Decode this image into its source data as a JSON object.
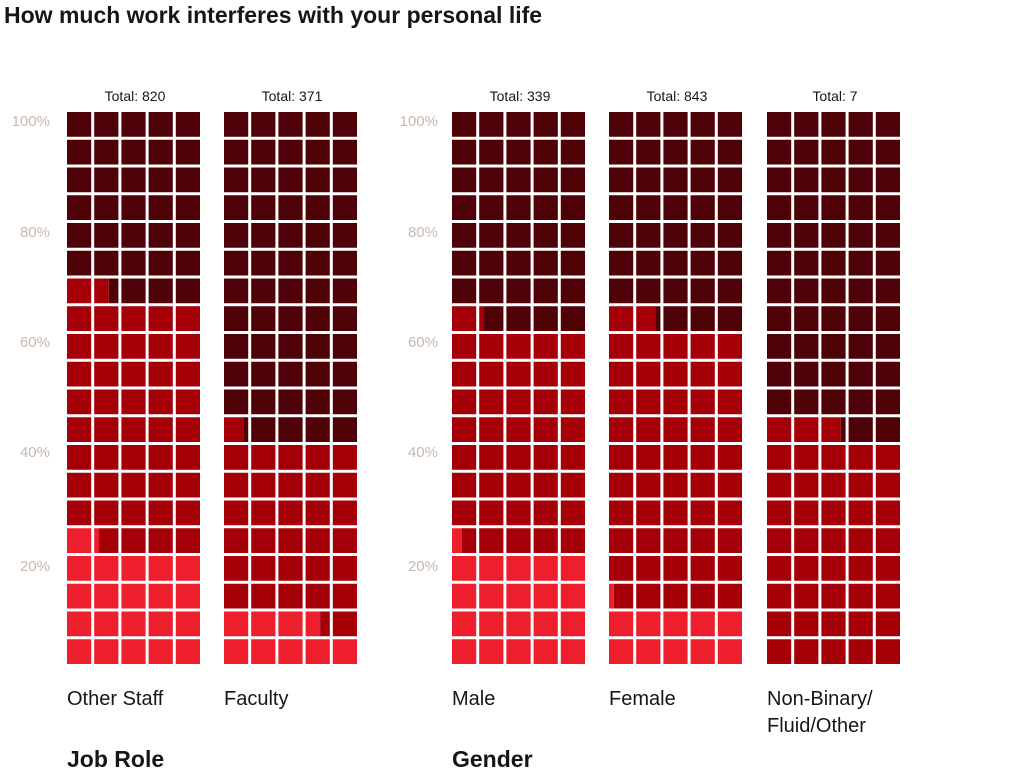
{
  "title": "How much work interferes with your personal life",
  "axis_ticks": [
    "100%",
    "80%",
    "60%",
    "40%",
    "20%"
  ],
  "groups": [
    {
      "label": "Job Role",
      "panels": [
        0,
        1
      ]
    },
    {
      "label": "Gender",
      "panels": [
        2,
        3,
        4
      ]
    }
  ],
  "colors": {
    "darkest": "#4f0108",
    "dark": "#a50008",
    "bright": "#ee1f2d",
    "text": "#161616",
    "axis": "#c6b9ad"
  },
  "chart_data": {
    "type": "waffle",
    "title": "How much work interferes with your personal life",
    "ylim": [
      0,
      100
    ],
    "rows": 20,
    "cols": 5,
    "y_ticks": [
      "100%",
      "80%",
      "60%",
      "40%",
      "20%"
    ],
    "series_colors": [
      "#ee1f2d",
      "#a50008",
      "#4f0108"
    ],
    "panels": [
      {
        "label": "Other Staff",
        "total_label": "Total: 820",
        "shares": [
          21.2,
          45.4,
          33.4
        ]
      },
      {
        "label": "Faculty",
        "total_label": "Total: 371",
        "shares": [
          8.6,
          32.2,
          59.2
        ]
      },
      {
        "label": "Male",
        "total_label": "Total: 339",
        "shares": [
          20.4,
          40.8,
          38.8
        ]
      },
      {
        "label": "Female",
        "total_label": "Total: 843",
        "shares": [
          10.2,
          51.6,
          38.2
        ]
      },
      {
        "label": "Non-Binary/\nFluid/Other",
        "total_label": "Total: 7",
        "shares": [
          0,
          42.8,
          57.2
        ]
      }
    ]
  }
}
